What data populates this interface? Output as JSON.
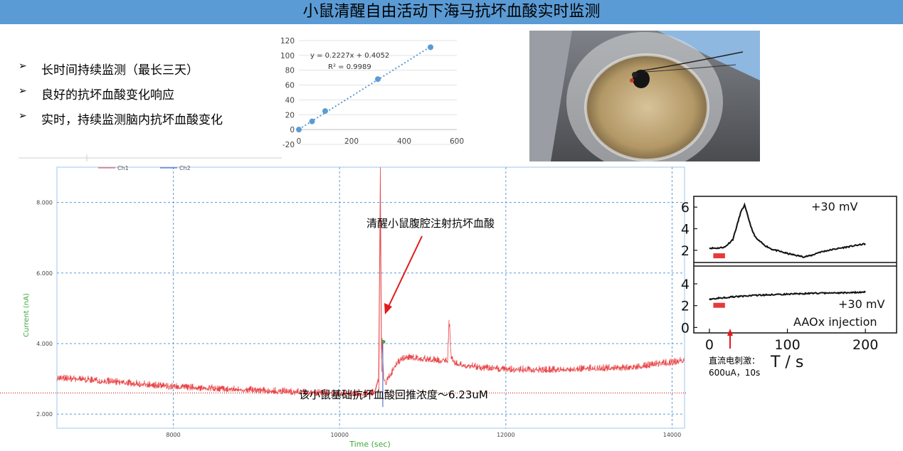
{
  "title": "小鼠清醒自由活动下海马抗坏血酸实时监测",
  "bullets": [
    {
      "text": "长时间持续监测（最长三天）"
    },
    {
      "text": "良好的抗坏血酸变化响应"
    },
    {
      "text": "实时，持续监测脑内抗坏血酸变化"
    }
  ],
  "bullet_marker": "➢",
  "photo": {
    "icon": "mouse-in-bowl-photo"
  },
  "annotations": {
    "injection": "清醒小鼠腹腔注射抗坏血酸",
    "baseline": "该小鼠基础抗坏血酸回推浓度～6.23uM",
    "stim_line1": "直流电刺激：",
    "stim_line2": "600uA，10s"
  },
  "chart_data": [
    {
      "type": "scatter",
      "title": "",
      "xlabel": "",
      "ylabel": "",
      "xlim": [
        0,
        600
      ],
      "ylim": [
        -20,
        120
      ],
      "x_ticks": [
        0,
        200,
        400,
        600
      ],
      "y_ticks": [
        -20,
        0,
        20,
        40,
        60,
        80,
        100,
        120
      ],
      "x_tick_labels": [
        "0",
        "200",
        "400",
        "600"
      ],
      "y_tick_labels": [
        "-20",
        "0",
        "20",
        "40",
        "60",
        "80",
        "100",
        "120"
      ],
      "points": {
        "x": [
          0,
          50,
          100,
          300,
          500
        ],
        "y": [
          0,
          11,
          25,
          68,
          111
        ]
      },
      "trendline": {
        "slope": 0.2227,
        "intercept": 0.4052,
        "style": "dotted"
      },
      "equation_label": "y = 0.2227x + 0.4052",
      "r2_label": "R² = 0.9989",
      "grid": "horizontal",
      "color": "#5b9bd5"
    },
    {
      "type": "line",
      "title": "",
      "xlabel": "Time (sec)",
      "ylabel": "Current (nA)",
      "xlim": [
        6600,
        14150
      ],
      "ylim": [
        1.6,
        9.0
      ],
      "x_ticks": [
        8000,
        10000,
        12000,
        14000
      ],
      "y_ticks": [
        2.0,
        4.0,
        6.0,
        8.0
      ],
      "x_tick_labels": [
        "8000",
        "10000",
        "12000",
        "14000"
      ],
      "y_tick_labels": [
        "2.000",
        "4.000",
        "6.000",
        "8.000"
      ],
      "grid": "dashed",
      "legend": "top-left",
      "series": [
        {
          "name": "Ch1",
          "color": "#e8474a",
          "x": [
            6600,
            7000,
            7500,
            8000,
            8500,
            9000,
            9500,
            10000,
            10300,
            10420,
            10470,
            10490,
            10500,
            10510,
            10530,
            10560,
            10600,
            10700,
            10800,
            11000,
            11200,
            11300,
            11320,
            11340,
            11400,
            11700,
            12000,
            12500,
            13000,
            13500,
            14000,
            14150
          ],
          "y": [
            3.05,
            3.0,
            2.9,
            2.8,
            2.75,
            2.7,
            2.65,
            2.62,
            2.6,
            2.65,
            3.0,
            8.9,
            3.3,
            4.3,
            3.0,
            2.9,
            3.1,
            3.5,
            3.65,
            3.6,
            3.55,
            3.55,
            4.8,
            3.6,
            3.45,
            3.35,
            3.3,
            3.28,
            3.32,
            3.35,
            3.5,
            3.55
          ]
        },
        {
          "name": "Ch2",
          "color": "#3f5bbf",
          "x": [
            10520,
            10520
          ],
          "y": [
            2.2,
            4.1
          ]
        }
      ],
      "reference_line": {
        "y": 2.6,
        "style": "dotted",
        "color": "#c00000"
      }
    },
    {
      "type": "line",
      "title": "",
      "xlabel": "T / s",
      "ylabel": "",
      "xlim": [
        -20,
        240
      ],
      "x_ticks": [
        0,
        100,
        200
      ],
      "x_tick_labels": [
        "0",
        "100",
        "200"
      ],
      "panels": [
        {
          "label": "+30 mV",
          "ylim": [
            1,
            7
          ],
          "y_ticks": [
            2,
            4,
            6
          ],
          "y_tick_labels": [
            "2",
            "4",
            "6"
          ],
          "x": [
            0,
            10,
            20,
            30,
            35,
            40,
            45,
            50,
            55,
            60,
            70,
            80,
            100,
            120,
            130,
            140,
            160,
            180,
            200
          ],
          "y": [
            2.2,
            2.2,
            2.3,
            3.0,
            4.2,
            5.5,
            6.2,
            5.0,
            3.8,
            3.1,
            2.5,
            2.1,
            1.7,
            1.4,
            1.5,
            1.8,
            2.1,
            2.35,
            2.6
          ],
          "stim_bar": [
            5,
            20
          ]
        },
        {
          "label": "+30 mV",
          "label2": "AAOx injection",
          "ylim": [
            -0.5,
            5.5
          ],
          "y_ticks": [
            0,
            2,
            4
          ],
          "y_tick_labels": [
            "0",
            "2",
            "4"
          ],
          "x": [
            0,
            20,
            40,
            60,
            80,
            100,
            120,
            140,
            160,
            180,
            200
          ],
          "y": [
            2.6,
            2.75,
            2.85,
            2.95,
            3.0,
            3.05,
            3.1,
            3.15,
            3.15,
            3.2,
            3.25
          ],
          "stim_bar": [
            5,
            20
          ]
        }
      ],
      "color": "#111111"
    }
  ]
}
